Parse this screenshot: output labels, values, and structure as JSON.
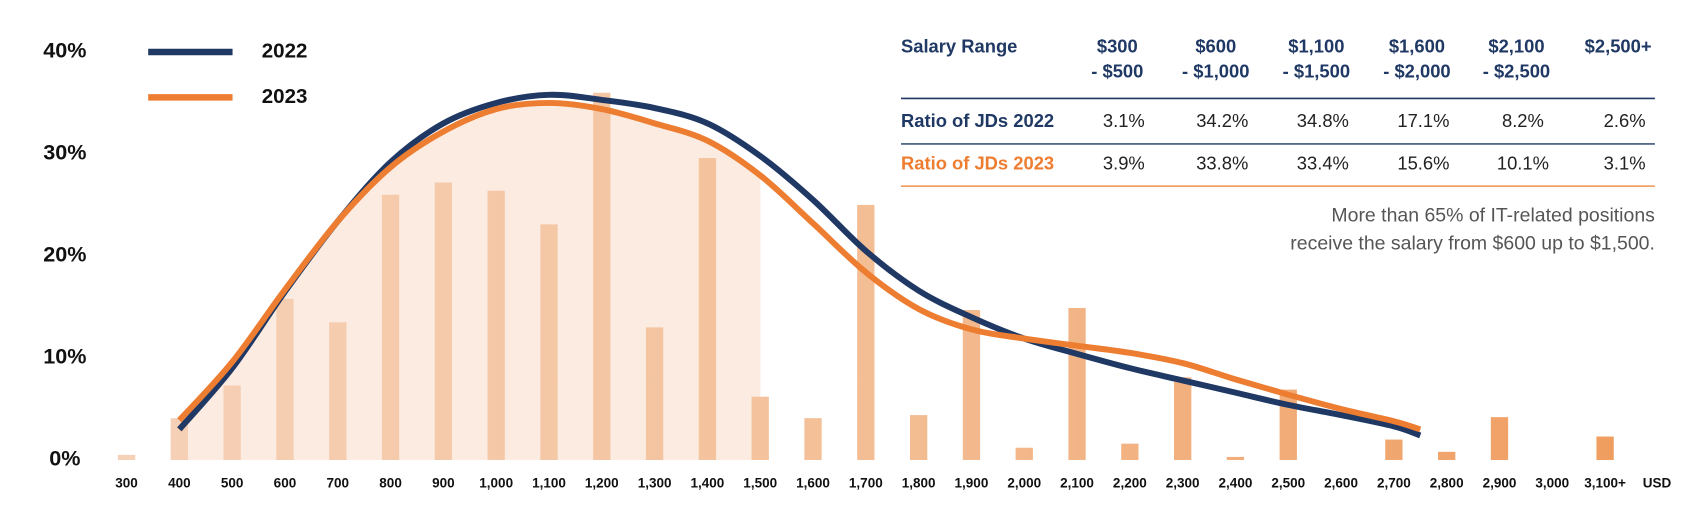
{
  "chart_data": {
    "type": "bar",
    "categories": [
      "300",
      "400",
      "500",
      "600",
      "700",
      "800",
      "900",
      "1,000",
      "1,100",
      "1,200",
      "1,300",
      "1,400",
      "1,500",
      "1,600",
      "1,700",
      "1,800",
      "1,900",
      "2,000",
      "2,100",
      "2,200",
      "2,300",
      "2,400",
      "2,500",
      "2,600",
      "2,700",
      "2,800",
      "2,900",
      "3,000",
      "3,100+"
    ],
    "x_unit": "USD",
    "series": [
      {
        "color": "#f2a266",
        "values": [
          0.5,
          4.1,
          7.3,
          15.8,
          13.5,
          26,
          27.2,
          26.4,
          23.1,
          36,
          13,
          29.6,
          6.2,
          4.1,
          25,
          4.4,
          14.7,
          1.2,
          14.9,
          1.6,
          8.1,
          0.3,
          6.9,
          null,
          2,
          0.8,
          4.2,
          null,
          2.3
        ]
      }
    ],
    "lines": [
      {
        "name": "2022",
        "color": "#1f3864",
        "x": [
          400,
          500,
          600,
          700,
          800,
          900,
          1000,
          1100,
          1200,
          1300,
          1400,
          1500,
          1600,
          1700,
          1800,
          1900,
          2000,
          2100,
          2200,
          2300,
          2400,
          2500,
          2600,
          2700,
          2750
        ],
        "values": [
          3,
          9,
          16.5,
          23.4,
          29.2,
          33,
          35,
          35.8,
          35.3,
          34.5,
          33,
          29.8,
          25.5,
          20.5,
          16.6,
          14,
          11.9,
          10.4,
          9,
          7.8,
          6.6,
          5.4,
          4.4,
          3.3,
          2.4
        ]
      },
      {
        "name": "2023",
        "color": "#ed7d31",
        "x": [
          400,
          500,
          600,
          700,
          800,
          900,
          1000,
          1100,
          1200,
          1300,
          1400,
          1500,
          1600,
          1700,
          1800,
          1900,
          2000,
          2100,
          2200,
          2300,
          2400,
          2500,
          2600,
          2700,
          2750
        ],
        "values": [
          3.9,
          9.6,
          16.7,
          23.4,
          28.7,
          32.2,
          34.4,
          35,
          34.4,
          33,
          31.3,
          27.9,
          23.2,
          18.4,
          14.8,
          12.8,
          11.9,
          11.2,
          10.5,
          9.5,
          7.9,
          6.4,
          5,
          3.8,
          3
        ]
      }
    ],
    "ylim": [
      0,
      40
    ],
    "yticks": [
      {
        "value": 0,
        "label": "0%"
      },
      {
        "value": 10,
        "label": "10%"
      },
      {
        "value": 20,
        "label": "20%"
      },
      {
        "value": 30,
        "label": "30%"
      },
      {
        "value": 40,
        "label": "40%"
      }
    ],
    "table": {
      "header": [
        [
          "Salary Range"
        ],
        [
          "$300",
          "- $500"
        ],
        [
          "$600",
          "- $1,000"
        ],
        [
          "$1,100",
          "- $1,500"
        ],
        [
          "$1,600",
          "- $2,000"
        ],
        [
          "$2,100",
          "- $2,500"
        ],
        [
          "$2,500+"
        ]
      ],
      "rows": [
        [
          "Ratio of JDs 2022",
          "3.1%",
          "34.2%",
          "34.8%",
          "17.1%",
          "8.2%",
          "2.6%"
        ],
        [
          "Ratio of JDs 2023",
          "3.9%",
          "33.8%",
          "33.4%",
          "15.6%",
          "10.1%",
          "3.1%"
        ]
      ]
    },
    "note": [
      "More than 65% of IT-related positions",
      "receive the salary from $600 up to $1,500."
    ]
  }
}
